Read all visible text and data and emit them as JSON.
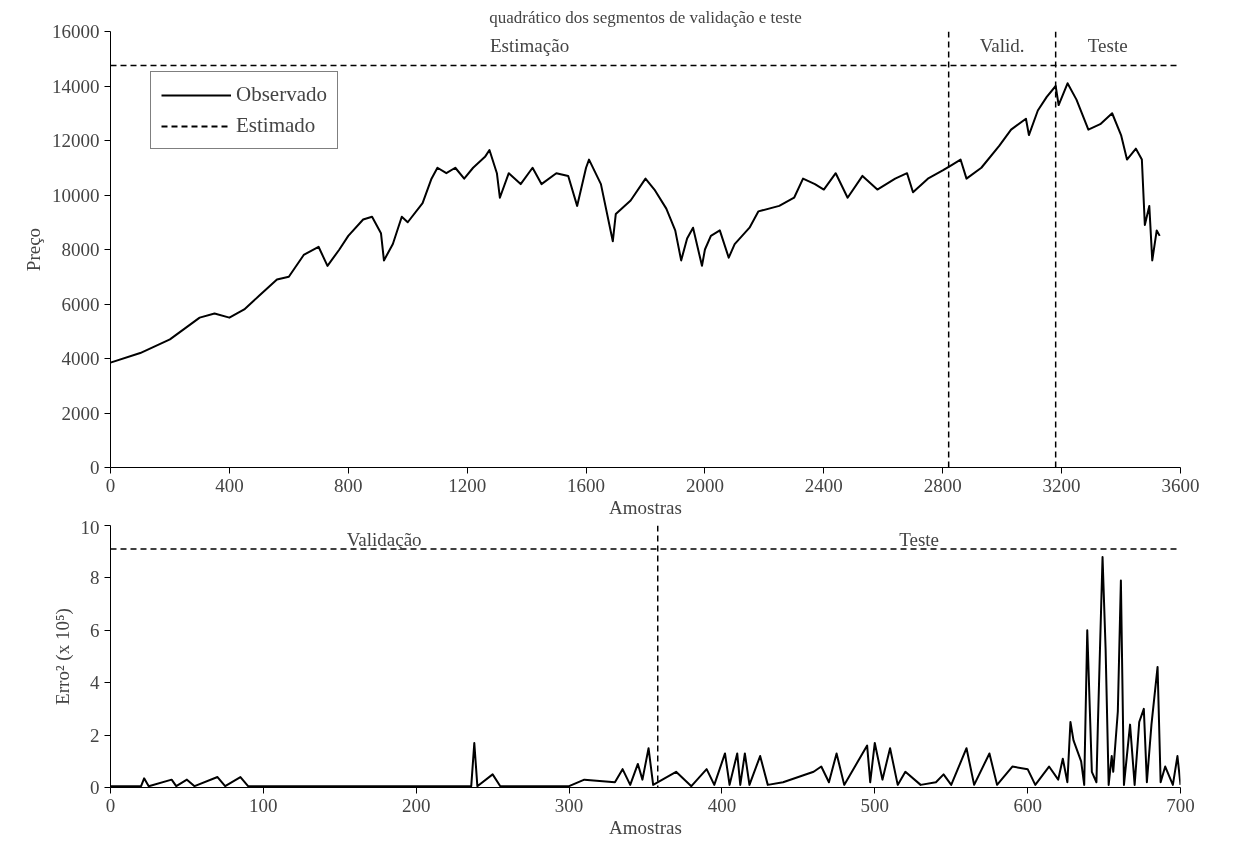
{
  "chart_data": [
    {
      "type": "line",
      "title": "quadrático dos segmentos de validação e teste",
      "xlabel": "Amostras",
      "ylabel": "Preço",
      "xlim": [
        0,
        3600
      ],
      "xticks": [
        0,
        400,
        800,
        1200,
        1600,
        2000,
        2400,
        2800,
        3200,
        3600
      ],
      "ylim": [
        0,
        16000
      ],
      "yticks": [
        0,
        2000,
        4000,
        6000,
        8000,
        10000,
        12000,
        14000,
        16000
      ],
      "grid": false,
      "legend": "top left",
      "series": [
        {
          "name": "Observado",
          "color": "#000000",
          "line_style": "solid",
          "x": [
            0,
            100,
            200,
            300,
            350,
            400,
            450,
            500,
            560,
            600,
            650,
            700,
            730,
            770,
            800,
            850,
            880,
            910,
            920,
            950,
            980,
            1000,
            1050,
            1080,
            1100,
            1130,
            1160,
            1190,
            1220,
            1260,
            1275,
            1300,
            1310,
            1340,
            1380,
            1420,
            1450,
            1500,
            1540,
            1570,
            1600,
            1610,
            1650,
            1690,
            1700,
            1750,
            1800,
            1830,
            1870,
            1900,
            1920,
            1940,
            1960,
            1990,
            2000,
            2020,
            2050,
            2080,
            2100,
            2150,
            2180,
            2250,
            2300,
            2330,
            2370,
            2400,
            2440,
            2480,
            2530,
            2580,
            2640,
            2680,
            2700,
            2750,
            2800,
            2830,
            2860,
            2880,
            2930,
            2990,
            3030,
            3080,
            3090,
            3120,
            3150,
            3180,
            3190,
            3220,
            3250,
            3290,
            3330,
            3370,
            3400,
            3420,
            3450,
            3470,
            3480,
            3495,
            3505,
            3520,
            3530
          ],
          "values": [
            3850,
            4200,
            4700,
            5500,
            5650,
            5500,
            5800,
            6300,
            6900,
            7000,
            7800,
            8100,
            7400,
            8000,
            8500,
            9100,
            9200,
            8600,
            7600,
            8200,
            9200,
            9000,
            9700,
            10600,
            11000,
            10800,
            11000,
            10600,
            11000,
            11400,
            11650,
            10800,
            9900,
            10800,
            10400,
            11000,
            10400,
            10800,
            10700,
            9600,
            11000,
            11300,
            10400,
            8300,
            9300,
            9800,
            10600,
            10200,
            9500,
            8700,
            7600,
            8400,
            8800,
            7400,
            8000,
            8500,
            8700,
            7700,
            8200,
            8800,
            9400,
            9600,
            9900,
            10600,
            10400,
            10200,
            10800,
            9900,
            10700,
            10200,
            10600,
            10800,
            10100,
            10600,
            10900,
            11100,
            11300,
            10600,
            11000,
            11800,
            12400,
            12800,
            12200,
            13100,
            13600,
            14000,
            13300,
            14100,
            13500,
            12400,
            12600,
            13000,
            12200,
            11300,
            11700,
            11300,
            8900,
            9600,
            7600,
            8700,
            8500
          ]
        },
        {
          "name": "Estimado",
          "color": "#000000",
          "line_style": "dashed"
        }
      ],
      "ref_lines": [
        {
          "axis": "x",
          "value": 2820,
          "line_style": "dashed",
          "color": "#000000"
        },
        {
          "axis": "x",
          "value": 3180,
          "line_style": "dashed",
          "color": "#000000"
        },
        {
          "axis": "y",
          "value": 14750,
          "line_style": "dashed",
          "color": "#000000"
        }
      ],
      "annotations": [
        "Estimação",
        "Valid.",
        "Teste"
      ]
    },
    {
      "type": "line",
      "xlabel": "Amostras",
      "ylabel": "Erro² (x 10⁵)",
      "xlim": [
        0,
        700
      ],
      "xticks": [
        0,
        100,
        200,
        300,
        400,
        500,
        600,
        700
      ],
      "ylim": [
        0,
        10
      ],
      "yticks": [
        0,
        2,
        4,
        6,
        8,
        10
      ],
      "grid": false,
      "legend": false,
      "series": [
        {
          "color": "#000000",
          "line_style": "solid",
          "x": [
            0,
            20,
            22,
            25,
            40,
            43,
            50,
            55,
            70,
            75,
            85,
            90,
            150,
            200,
            236,
            238,
            240,
            250,
            255,
            300,
            310,
            330,
            335,
            340,
            345,
            348,
            352,
            355,
            370,
            380,
            390,
            395,
            402,
            405,
            410,
            412,
            415,
            418,
            425,
            430,
            440,
            450,
            460,
            465,
            470,
            475,
            480,
            495,
            497,
            500,
            505,
            510,
            515,
            520,
            530,
            540,
            545,
            550,
            560,
            565,
            575,
            580,
            590,
            600,
            605,
            614,
            620,
            623,
            626,
            628,
            630,
            635,
            637,
            639,
            642,
            645,
            646,
            647,
            649,
            651,
            653,
            655,
            656,
            659,
            661,
            663,
            667,
            670,
            673,
            676,
            678,
            681,
            685,
            687,
            690,
            695,
            698,
            700
          ],
          "values": [
            0.05,
            0.05,
            0.35,
            0.05,
            0.3,
            0.05,
            0.3,
            0.05,
            0.4,
            0.05,
            0.4,
            0.05,
            0.05,
            0.05,
            0.05,
            1.7,
            0.05,
            0.5,
            0.05,
            0.05,
            0.3,
            0.2,
            0.7,
            0.1,
            0.9,
            0.3,
            1.5,
            0.1,
            0.6,
            0.05,
            0.7,
            0.1,
            1.3,
            0.1,
            1.3,
            0.1,
            1.3,
            0.1,
            1.2,
            0.1,
            0.2,
            0.4,
            0.6,
            0.8,
            0.2,
            1.3,
            0.1,
            1.6,
            0.2,
            1.7,
            0.3,
            1.5,
            0.1,
            0.6,
            0.1,
            0.2,
            0.5,
            0.1,
            1.5,
            0.1,
            1.3,
            0.1,
            0.8,
            0.7,
            0.1,
            0.8,
            0.3,
            1.1,
            0.2,
            2.5,
            1.8,
            1.0,
            0.1,
            6.0,
            0.6,
            0.2,
            2.5,
            4.6,
            8.8,
            5.3,
            0.1,
            1.2,
            0.6,
            2.9,
            7.9,
            0.1,
            2.4,
            0.1,
            2.5,
            3.0,
            0.2,
            2.4,
            4.6,
            0.2,
            0.8,
            0.1,
            1.2,
            0.1
          ]
        }
      ],
      "ref_lines": [
        {
          "axis": "x",
          "value": 358,
          "line_style": "dashed",
          "color": "#000000"
        },
        {
          "axis": "y",
          "value": 9.1,
          "line_style": "dashed",
          "color": "#000000"
        }
      ],
      "annotations": [
        "Validação",
        "Teste"
      ]
    }
  ]
}
